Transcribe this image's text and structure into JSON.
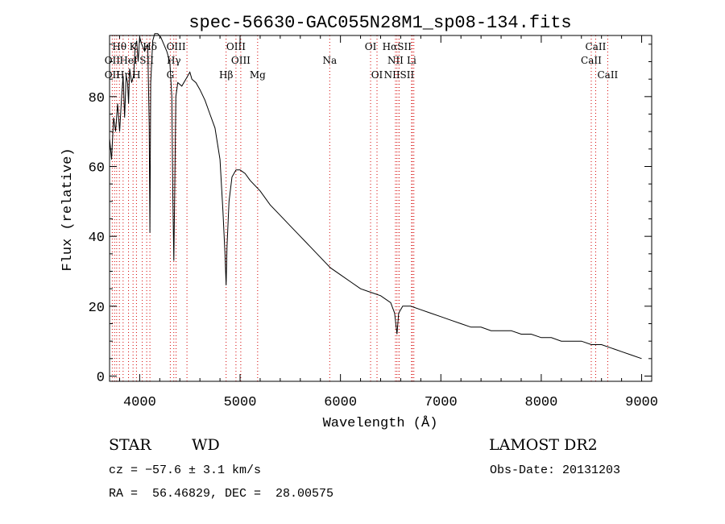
{
  "chart_data": {
    "type": "line",
    "title": "spec-56630-GAC055N28M1_sp08-134.fits",
    "xlabel": "Wavelength (Å)",
    "ylabel": "Flux (relative)",
    "xlim": [
      3700,
      9100
    ],
    "ylim": [
      -1.5,
      97.5
    ],
    "xticks": [
      4000,
      5000,
      6000,
      7000,
      8000,
      9000
    ],
    "yticks": [
      0,
      20,
      40,
      60,
      80
    ],
    "grid": false,
    "series": [
      {
        "color": "#000000",
        "x": [
          3700,
          3720,
          3740,
          3760,
          3780,
          3800,
          3820,
          3835,
          3850,
          3865,
          3880,
          3889,
          3900,
          3920,
          3940,
          3955,
          3970,
          3985,
          4000,
          4020,
          4050,
          4080,
          4095,
          4102,
          4110,
          4130,
          4150,
          4180,
          4210,
          4240,
          4270,
          4300,
          4320,
          4330,
          4340,
          4350,
          4360,
          4380,
          4420,
          4460,
          4500,
          4520,
          4560,
          4600,
          4650,
          4700,
          4750,
          4800,
          4830,
          4850,
          4861,
          4870,
          4890,
          4920,
          4960,
          5000,
          5050,
          5100,
          5200,
          5300,
          5400,
          5500,
          5600,
          5700,
          5800,
          5900,
          6000,
          6100,
          6200,
          6300,
          6400,
          6500,
          6540,
          6563,
          6580,
          6620,
          6700,
          6800,
          6900,
          7000,
          7100,
          7200,
          7300,
          7400,
          7500,
          7600,
          7700,
          7800,
          7900,
          8000,
          8100,
          8200,
          8300,
          8400,
          8500,
          8600,
          8700,
          8800,
          8900,
          9000
        ],
        "y": [
          68,
          62,
          74,
          70,
          78,
          70,
          80,
          86,
          74,
          86,
          84,
          78,
          88,
          84,
          86,
          94,
          96,
          90,
          97,
          95,
          93,
          95,
          72,
          41,
          84,
          96,
          98,
          98,
          97,
          95,
          93,
          90,
          80,
          52,
          33,
          55,
          80,
          84,
          83,
          85,
          87,
          85,
          84,
          82,
          79,
          75,
          71,
          62,
          47,
          35,
          26,
          37,
          50,
          57,
          59,
          59,
          58,
          56,
          53,
          49,
          46,
          43,
          40,
          37,
          34,
          31,
          29,
          27,
          25,
          24,
          23,
          21,
          18,
          12,
          18,
          20,
          20,
          19,
          18,
          17,
          16,
          15,
          14,
          14,
          13,
          13,
          13,
          12,
          12,
          11,
          11,
          10,
          10,
          10,
          9,
          9,
          8,
          7,
          6,
          5
        ]
      }
    ],
    "lines": [
      {
        "label": "Hθ",
        "x": 3798,
        "row": 0
      },
      {
        "label": "K",
        "x": 3934,
        "row": 0
      },
      {
        "label": "Hδ",
        "x": 4102,
        "row": 0
      },
      {
        "label": "OIII",
        "x": 4363,
        "row": 0
      },
      {
        "label": "OIII",
        "x": 4959,
        "row": 0
      },
      {
        "label": "OI",
        "x": 6300,
        "row": 0
      },
      {
        "label": "HαSII",
        "x": 6563,
        "row": 0
      },
      {
        "label": "CaII",
        "x": 8542,
        "row": 0
      },
      {
        "label": "OII",
        "x": 3727,
        "row": 1
      },
      {
        "label": "HeI",
        "x": 3889,
        "row": 1
      },
      {
        "label": "SII",
        "x": 4070,
        "row": 1
      },
      {
        "label": "Hγ",
        "x": 4340,
        "row": 1
      },
      {
        "label": "OIII",
        "x": 5007,
        "row": 1
      },
      {
        "label": "Na",
        "x": 5893,
        "row": 1
      },
      {
        "label": "NII",
        "x": 6548,
        "row": 1
      },
      {
        "label": "Li",
        "x": 6708,
        "row": 1
      },
      {
        "label": "CaII",
        "x": 8498,
        "row": 1
      },
      {
        "label": "OII",
        "x": 3727,
        "row": 2
      },
      {
        "label": "Hη",
        "x": 3835,
        "row": 2
      },
      {
        "label": "H",
        "x": 3968,
        "row": 2
      },
      {
        "label": "G",
        "x": 4305,
        "row": 2
      },
      {
        "label": "Hβ",
        "x": 4861,
        "row": 2
      },
      {
        "label": "Mg",
        "x": 5175,
        "row": 2
      },
      {
        "label": "OI",
        "x": 6364,
        "row": 2
      },
      {
        "label": "NIISII",
        "x": 6584,
        "row": 2
      },
      {
        "label": "CaII",
        "x": 8662,
        "row": 2
      }
    ],
    "extra_line_markers": [
      3750,
      3771,
      3889,
      4026,
      4471,
      6583,
      6716,
      6731
    ]
  },
  "info": {
    "object_class": "STAR",
    "subclass": "WD",
    "survey": "LAMOST DR2",
    "cz": "cz = −57.6 ± 3.1 km/s",
    "obs_date": "Obs-Date: 20131203",
    "coords": "RA =  56.46829, DEC =  28.00575"
  }
}
